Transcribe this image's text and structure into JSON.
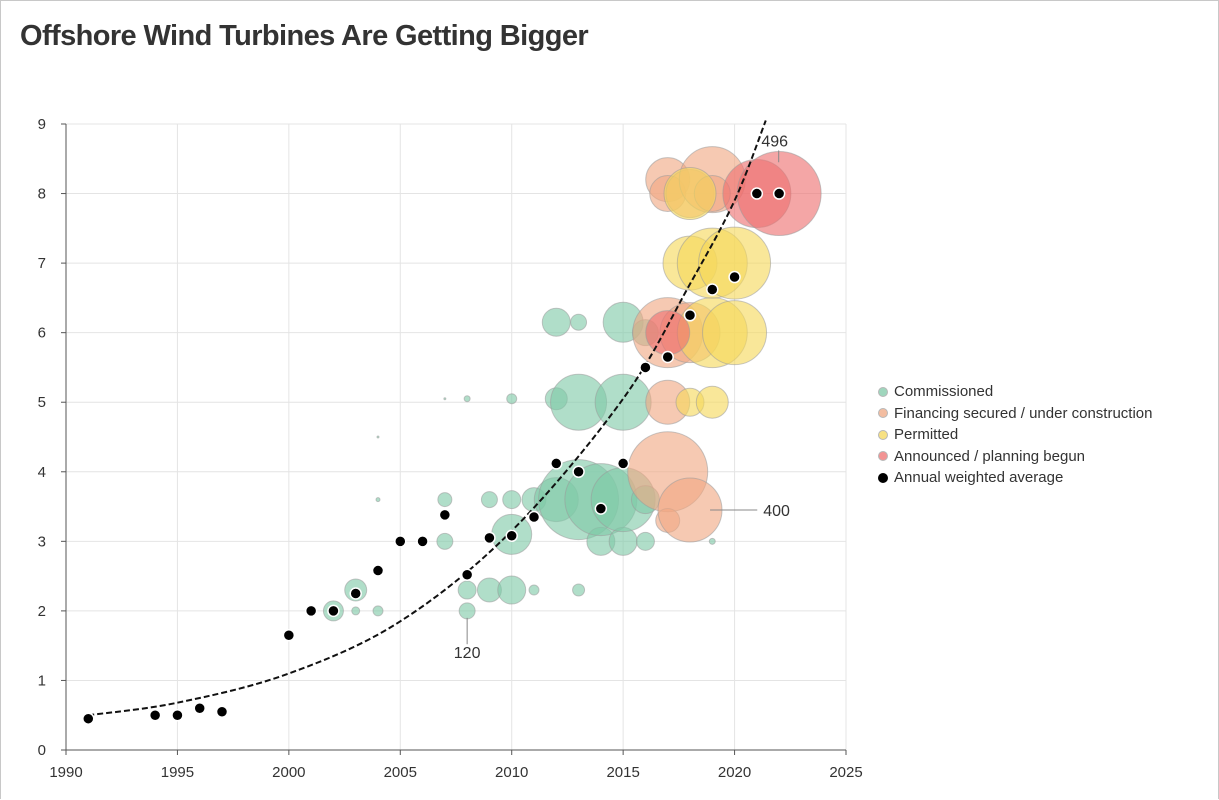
{
  "chart_data": {
    "type": "scatter",
    "title": "Offshore Wind Turbines Are Getting Bigger",
    "xlabel": "",
    "ylabel": "",
    "xlim": [
      1990,
      2025
    ],
    "ylim": [
      0,
      9
    ],
    "xticks": [
      1990,
      1995,
      2000,
      2005,
      2010,
      2015,
      2020,
      2025
    ],
    "yticks": [
      0,
      1,
      2,
      3,
      4,
      5,
      6,
      7,
      8,
      9
    ],
    "grid": true,
    "legend_position": "right",
    "colors": {
      "Commissioned": "#7fc9a8",
      "Financing secured / under construction": "#f0a882",
      "Permitted": "#f5d85a",
      "Announced / planning begun": "#ee7070",
      "Annual weighted average": "#000000"
    },
    "series": [
      {
        "name": "Commissioned",
        "points": [
          {
            "x": 2002,
            "y": 2,
            "size": 10
          },
          {
            "x": 2003,
            "y": 2,
            "size": 4
          },
          {
            "x": 2003,
            "y": 2.3,
            "size": 11
          },
          {
            "x": 2004,
            "y": 2,
            "size": 5
          },
          {
            "x": 2004,
            "y": 3.6,
            "size": 2
          },
          {
            "x": 2004,
            "y": 4.5,
            "size": 1
          },
          {
            "x": 2007,
            "y": 3,
            "size": 8
          },
          {
            "x": 2007,
            "y": 3.6,
            "size": 7
          },
          {
            "x": 2007,
            "y": 5.05,
            "size": 1
          },
          {
            "x": 2008,
            "y": 2,
            "size": 8
          },
          {
            "x": 2008,
            "y": 2.3,
            "size": 9
          },
          {
            "x": 2008,
            "y": 5.05,
            "size": 3
          },
          {
            "x": 2009,
            "y": 2.3,
            "size": 12
          },
          {
            "x": 2009,
            "y": 3.6,
            "size": 8
          },
          {
            "x": 2010,
            "y": 2.3,
            "size": 14
          },
          {
            "x": 2010,
            "y": 3.1,
            "size": 20
          },
          {
            "x": 2010,
            "y": 3.6,
            "size": 9
          },
          {
            "x": 2010,
            "y": 5.05,
            "size": 5
          },
          {
            "x": 2011,
            "y": 2.3,
            "size": 5
          },
          {
            "x": 2011,
            "y": 3.6,
            "size": 12
          },
          {
            "x": 2012,
            "y": 3.6,
            "size": 22
          },
          {
            "x": 2012,
            "y": 5.05,
            "size": 11
          },
          {
            "x": 2012,
            "y": 6.15,
            "size": 14
          },
          {
            "x": 2013,
            "y": 2.3,
            "size": 6
          },
          {
            "x": 2013,
            "y": 3.6,
            "size": 40
          },
          {
            "x": 2013,
            "y": 5,
            "size": 28
          },
          {
            "x": 2013,
            "y": 6.15,
            "size": 8
          },
          {
            "x": 2014,
            "y": 3,
            "size": 14
          },
          {
            "x": 2014,
            "y": 3.6,
            "size": 36
          },
          {
            "x": 2015,
            "y": 3,
            "size": 14
          },
          {
            "x": 2015,
            "y": 3.6,
            "size": 32
          },
          {
            "x": 2015,
            "y": 5,
            "size": 28
          },
          {
            "x": 2015,
            "y": 6.15,
            "size": 20
          },
          {
            "x": 2016,
            "y": 3,
            "size": 9
          },
          {
            "x": 2016,
            "y": 3.6,
            "size": 14
          },
          {
            "x": 2016,
            "y": 6,
            "size": 13
          },
          {
            "x": 2019,
            "y": 3,
            "size": 3
          }
        ]
      },
      {
        "name": "Financing secured / under construction",
        "points": [
          {
            "x": 2017,
            "y": 4,
            "size": 40
          },
          {
            "x": 2017,
            "y": 3.3,
            "size": 12
          },
          {
            "x": 2017,
            "y": 5,
            "size": 22
          },
          {
            "x": 2017,
            "y": 6,
            "size": 35
          },
          {
            "x": 2017,
            "y": 8.2,
            "size": 22
          },
          {
            "x": 2017,
            "y": 8,
            "size": 18
          },
          {
            "x": 2018,
            "y": 3.45,
            "size": 32
          },
          {
            "x": 2018,
            "y": 6,
            "size": 30
          },
          {
            "x": 2018,
            "y": 8,
            "size": 24
          },
          {
            "x": 2019,
            "y": 8.2,
            "size": 33
          },
          {
            "x": 2019,
            "y": 8,
            "size": 18
          }
        ]
      },
      {
        "name": "Permitted",
        "points": [
          {
            "x": 2018,
            "y": 5,
            "size": 14
          },
          {
            "x": 2018,
            "y": 7,
            "size": 27
          },
          {
            "x": 2018,
            "y": 8,
            "size": 26
          },
          {
            "x": 2019,
            "y": 5,
            "size": 16
          },
          {
            "x": 2019,
            "y": 6,
            "size": 35
          },
          {
            "x": 2019,
            "y": 7,
            "size": 35
          },
          {
            "x": 2020,
            "y": 6,
            "size": 32
          },
          {
            "x": 2020,
            "y": 7,
            "size": 36
          }
        ]
      },
      {
        "name": "Announced / planning begun",
        "points": [
          {
            "x": 2017,
            "y": 6,
            "size": 22
          },
          {
            "x": 2021,
            "y": 8,
            "size": 34
          },
          {
            "x": 2022,
            "y": 8,
            "size": 42
          }
        ]
      },
      {
        "name": "Annual weighted average",
        "points": [
          {
            "x": 1991,
            "y": 0.45
          },
          {
            "x": 1994,
            "y": 0.5
          },
          {
            "x": 1995,
            "y": 0.5
          },
          {
            "x": 1996,
            "y": 0.6
          },
          {
            "x": 1997,
            "y": 0.55
          },
          {
            "x": 2000,
            "y": 1.65
          },
          {
            "x": 2001,
            "y": 2
          },
          {
            "x": 2002,
            "y": 2
          },
          {
            "x": 2003,
            "y": 2.25
          },
          {
            "x": 2004,
            "y": 2.58
          },
          {
            "x": 2005,
            "y": 3
          },
          {
            "x": 2006,
            "y": 3
          },
          {
            "x": 2007,
            "y": 3.38
          },
          {
            "x": 2008,
            "y": 2.52
          },
          {
            "x": 2009,
            "y": 3.05
          },
          {
            "x": 2010,
            "y": 3.08
          },
          {
            "x": 2011,
            "y": 3.35
          },
          {
            "x": 2012,
            "y": 4.12
          },
          {
            "x": 2013,
            "y": 4
          },
          {
            "x": 2014,
            "y": 3.47
          },
          {
            "x": 2015,
            "y": 4.12
          },
          {
            "x": 2016,
            "y": 5.5
          },
          {
            "x": 2017,
            "y": 5.65
          },
          {
            "x": 2018,
            "y": 6.25
          },
          {
            "x": 2019,
            "y": 6.62
          },
          {
            "x": 2020,
            "y": 6.8
          },
          {
            "x": 2021,
            "y": 8
          },
          {
            "x": 2022,
            "y": 8
          }
        ]
      }
    ],
    "trendline": {
      "style": "dashed",
      "points": [
        {
          "x": 1991,
          "y": 0.5
        },
        {
          "x": 1995,
          "y": 0.68
        },
        {
          "x": 2000,
          "y": 1.1
        },
        {
          "x": 2005,
          "y": 1.85
        },
        {
          "x": 2010,
          "y": 3.15
        },
        {
          "x": 2015,
          "y": 5.05
        },
        {
          "x": 2018,
          "y": 6.7
        },
        {
          "x": 2020,
          "y": 7.9
        },
        {
          "x": 2021.4,
          "y": 9.05
        }
      ]
    },
    "annotations": [
      {
        "text": "120",
        "x": 2008,
        "y": 1.55,
        "leader_from": 1.9
      },
      {
        "text": "400",
        "x": 2020.3,
        "y": 3.45,
        "leader_from": 3.45
      },
      {
        "text": "496",
        "x": 2021.8,
        "y": 8.75,
        "leader_from": 8.45
      }
    ]
  }
}
